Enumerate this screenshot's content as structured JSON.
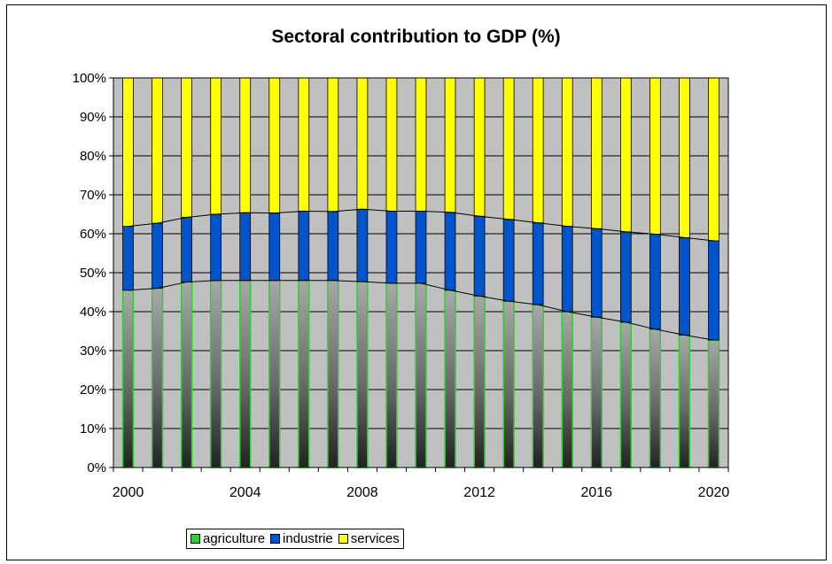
{
  "chart_data": {
    "type": "bar",
    "stacked": true,
    "title": "Sectoral contribution to GDP (%)",
    "xlabel": "",
    "ylabel": "",
    "ylim": [
      0,
      100
    ],
    "y_ticks": [
      "0%",
      "10%",
      "20%",
      "30%",
      "40%",
      "50%",
      "60%",
      "70%",
      "80%",
      "90%",
      "100%"
    ],
    "x_tick_labels": [
      "2000",
      "2004",
      "2008",
      "2012",
      "2016",
      "2020"
    ],
    "categories": [
      "2000",
      "2001",
      "2002",
      "2003",
      "2004",
      "2005",
      "2006",
      "2007",
      "2008",
      "2009",
      "2010",
      "2011",
      "2012",
      "2013",
      "2014",
      "2015",
      "2016",
      "2017",
      "2018",
      "2019",
      "2020"
    ],
    "series": [
      {
        "name": "agriculture",
        "color": "#33cc33",
        "values": [
          45.5,
          46,
          47.6,
          48,
          48,
          48,
          48,
          48,
          47.7,
          47.3,
          47.3,
          45.5,
          44,
          42.7,
          41.8,
          40,
          38.6,
          37.3,
          35.5,
          34,
          32.7
        ]
      },
      {
        "name": "industrie",
        "color": "#0055cc",
        "values": [
          16.4,
          16.7,
          16.6,
          17,
          17.4,
          17.3,
          17.8,
          17.7,
          18.6,
          18.5,
          18.5,
          20,
          20.5,
          21,
          21,
          21.9,
          22.7,
          23.2,
          24.4,
          25,
          25.5
        ]
      },
      {
        "name": "services",
        "color": "#ffff00",
        "values": [
          38.1,
          37.3,
          35.8,
          35,
          34.6,
          34.7,
          34.2,
          34.3,
          33.7,
          34.2,
          34.2,
          34.5,
          35.5,
          36.3,
          37.2,
          38.1,
          38.7,
          39.5,
          40.1,
          41,
          41.8
        ]
      }
    ],
    "grid": true,
    "legend_position": "bottom-left",
    "plot_background": "#c0c0c0"
  }
}
